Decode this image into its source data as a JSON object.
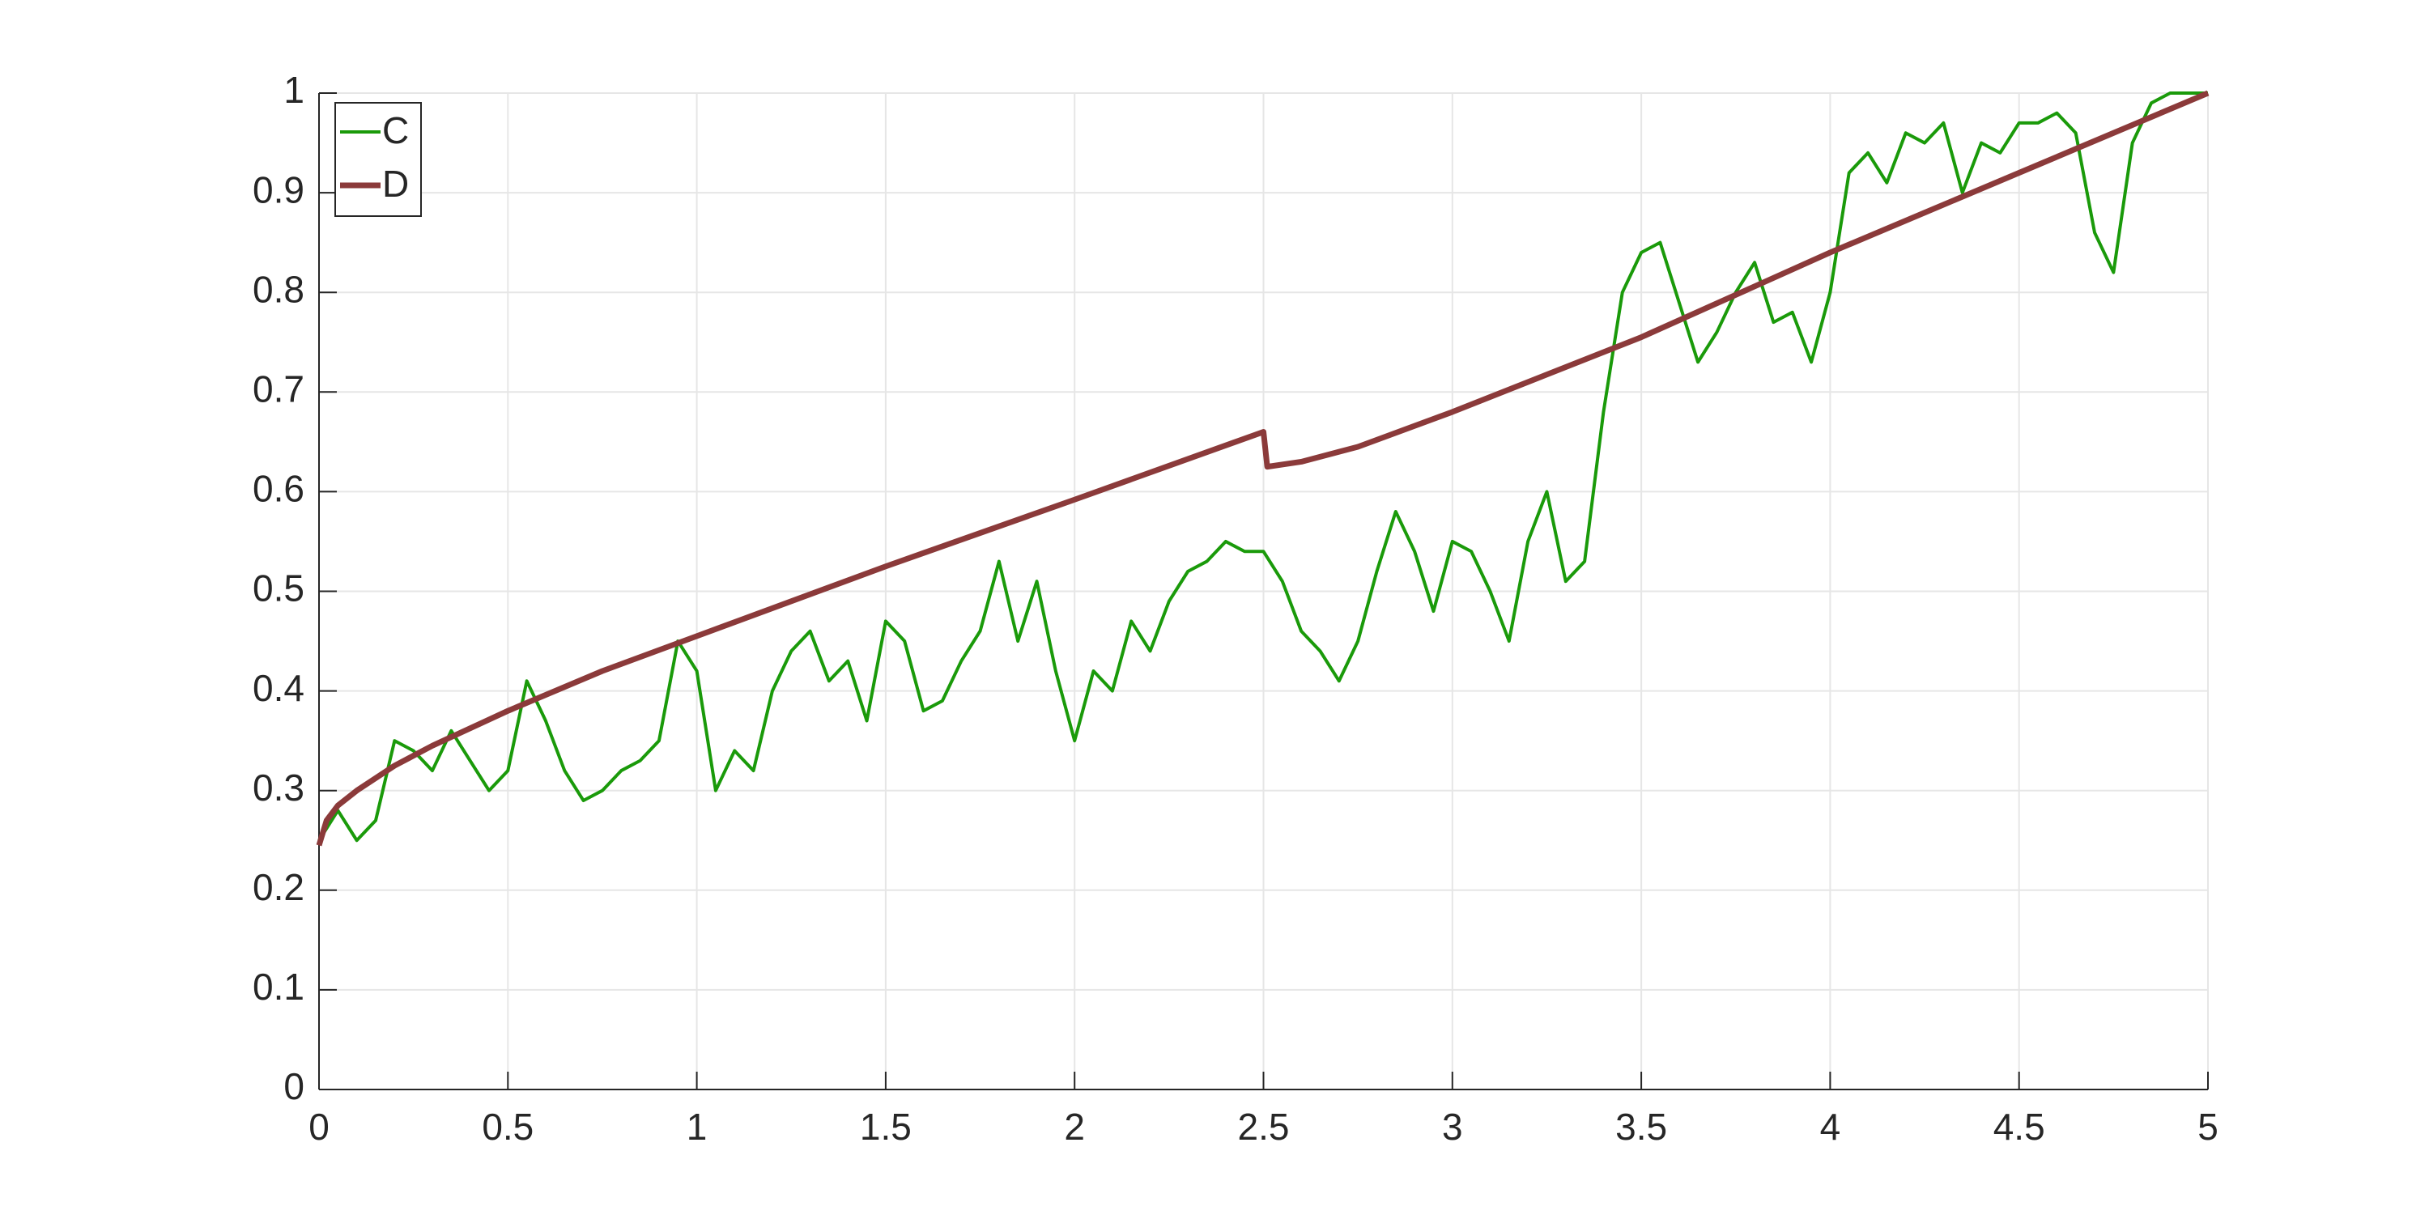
{
  "chart_data": {
    "type": "line",
    "xlim": [
      0,
      5
    ],
    "ylim": [
      0,
      1
    ],
    "xticks": [
      0,
      0.5,
      1,
      1.5,
      2,
      2.5,
      3,
      3.5,
      4,
      4.5,
      5
    ],
    "yticks": [
      0,
      0.1,
      0.2,
      0.3,
      0.4,
      0.5,
      0.6,
      0.7,
      0.8,
      0.9,
      1
    ],
    "grid": true,
    "legend": "northwest",
    "series": [
      {
        "name": "C",
        "color": "#1a9a0a",
        "x": [
          0,
          0.05,
          0.1,
          0.15,
          0.2,
          0.25,
          0.3,
          0.35,
          0.4,
          0.45,
          0.5,
          0.55,
          0.6,
          0.65,
          0.7,
          0.75,
          0.8,
          0.85,
          0.9,
          0.95,
          1,
          1.05,
          1.1,
          1.15,
          1.2,
          1.25,
          1.3,
          1.35,
          1.4,
          1.45,
          1.5,
          1.55,
          1.6,
          1.65,
          1.7,
          1.75,
          1.8,
          1.85,
          1.9,
          1.95,
          2,
          2.05,
          2.1,
          2.15,
          2.2,
          2.25,
          2.3,
          2.35,
          2.4,
          2.45,
          2.5,
          2.55,
          2.6,
          2.65,
          2.7,
          2.75,
          2.8,
          2.85,
          2.9,
          2.95,
          3,
          3.05,
          3.1,
          3.15,
          3.2,
          3.25,
          3.3,
          3.35,
          3.4,
          3.45,
          3.5,
          3.55,
          3.6,
          3.65,
          3.7,
          3.75,
          3.8,
          3.85,
          3.9,
          3.95,
          4,
          4.05,
          4.1,
          4.15,
          4.2,
          4.25,
          4.3,
          4.35,
          4.4,
          4.45,
          4.5,
          4.55,
          4.6,
          4.65,
          4.7,
          4.75,
          4.8,
          4.85,
          4.9,
          4.95,
          5
        ],
        "values": [
          0.25,
          0.28,
          0.25,
          0.27,
          0.35,
          0.34,
          0.32,
          0.36,
          0.33,
          0.3,
          0.32,
          0.41,
          0.37,
          0.32,
          0.29,
          0.3,
          0.32,
          0.33,
          0.35,
          0.45,
          0.42,
          0.3,
          0.34,
          0.32,
          0.4,
          0.44,
          0.46,
          0.41,
          0.43,
          0.37,
          0.47,
          0.45,
          0.38,
          0.39,
          0.43,
          0.46,
          0.53,
          0.45,
          0.51,
          0.42,
          0.35,
          0.42,
          0.4,
          0.47,
          0.44,
          0.49,
          0.52,
          0.53,
          0.55,
          0.54,
          0.54,
          0.51,
          0.46,
          0.44,
          0.41,
          0.45,
          0.52,
          0.58,
          0.54,
          0.48,
          0.55,
          0.54,
          0.5,
          0.45,
          0.55,
          0.6,
          0.51,
          0.53,
          0.68,
          0.8,
          0.84,
          0.85,
          0.79,
          0.73,
          0.76,
          0.8,
          0.83,
          0.77,
          0.78,
          0.73,
          0.8,
          0.92,
          0.94,
          0.91,
          0.96,
          0.95,
          0.97,
          0.9,
          0.95,
          0.94,
          0.97,
          0.97,
          0.98,
          0.96,
          0.86,
          0.82,
          0.95,
          0.99,
          1.0,
          1.0,
          1.0
        ]
      },
      {
        "name": "D",
        "color": "#8b3a3a",
        "x": [
          0,
          0.02,
          0.05,
          0.1,
          0.2,
          0.3,
          0.5,
          0.75,
          1,
          1.5,
          2,
          2.5,
          2.51,
          2.6,
          2.75,
          3,
          3.5,
          4,
          4.5,
          5
        ],
        "values": [
          0.245,
          0.27,
          0.285,
          0.3,
          0.325,
          0.345,
          0.38,
          0.42,
          0.455,
          0.525,
          0.592,
          0.66,
          0.625,
          0.63,
          0.645,
          0.68,
          0.755,
          0.84,
          0.92,
          1.0
        ]
      }
    ]
  }
}
